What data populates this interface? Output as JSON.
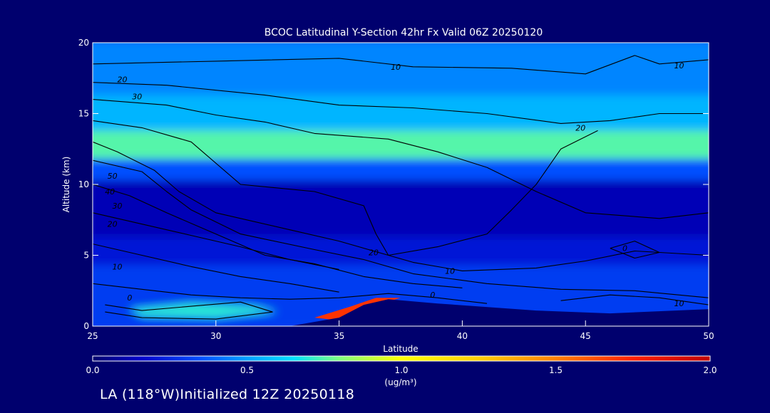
{
  "colors": {
    "background": "#00006e",
    "contour_line": "#000000",
    "axis": "#ffffff",
    "terrain": "#00006e"
  },
  "footer": {
    "text": "LA (118°W)Initialized 12Z 20250118"
  },
  "chart_data": {
    "type": "heatmap",
    "title": "BCOC Latitudinal Y-Section 42hr  Fx Valid 06Z 20250120",
    "xlabel": "Latitude",
    "ylabel": "Altitude (km)",
    "xlim": [
      25,
      50
    ],
    "ylim": [
      0,
      20
    ],
    "x_ticks": [
      25,
      30,
      35,
      40,
      45,
      50
    ],
    "y_ticks": [
      0,
      5,
      10,
      15,
      20
    ],
    "grid": false,
    "colorbar": {
      "label": "(ug/m³)",
      "range": [
        0.0,
        2.0
      ],
      "ticks": [
        "0.0",
        "0.5",
        "1.0",
        "1.5",
        "2.0"
      ],
      "stops": [
        {
          "v": 0.0,
          "c": "#00006e"
        },
        {
          "v": 0.15,
          "c": "#0000c8"
        },
        {
          "v": 0.35,
          "c": "#0050ff"
        },
        {
          "v": 0.5,
          "c": "#00a0ff"
        },
        {
          "v": 0.65,
          "c": "#00e0ff"
        },
        {
          "v": 0.8,
          "c": "#80ff80"
        },
        {
          "v": 1.0,
          "c": "#ffff00"
        },
        {
          "v": 1.25,
          "c": "#ffd000"
        },
        {
          "v": 1.5,
          "c": "#ff8000"
        },
        {
          "v": 1.75,
          "c": "#ff2000"
        },
        {
          "v": 2.0,
          "c": "#c00000"
        }
      ]
    },
    "field_bands": [
      {
        "y0": 0,
        "y1": 4.5,
        "value": 0.3
      },
      {
        "y0": 4.5,
        "y1": 6.5,
        "value": 0.2
      },
      {
        "y0": 6.5,
        "y1": 10.5,
        "value": 0.12
      },
      {
        "y0": 10.5,
        "y1": 12.0,
        "value": 0.35
      },
      {
        "y0": 12.0,
        "y1": 14.0,
        "value": 0.75
      },
      {
        "y0": 14.0,
        "y1": 16.5,
        "value": 0.55
      },
      {
        "y0": 16.5,
        "y1": 20,
        "value": 0.45
      }
    ],
    "contour_labels": [
      {
        "text": "10",
        "x": 37.3,
        "y": 18.3
      },
      {
        "text": "10",
        "x": 48.8,
        "y": 18.4
      },
      {
        "text": "20",
        "x": 26.2,
        "y": 17.4
      },
      {
        "text": "30",
        "x": 26.8,
        "y": 16.2
      },
      {
        "text": "20",
        "x": 44.8,
        "y": 14.0
      },
      {
        "text": "50",
        "x": 25.8,
        "y": 10.6
      },
      {
        "text": "40",
        "x": 25.7,
        "y": 9.5
      },
      {
        "text": "30",
        "x": 26.0,
        "y": 8.5
      },
      {
        "text": "20",
        "x": 25.8,
        "y": 7.2
      },
      {
        "text": "20",
        "x": 36.4,
        "y": 5.2
      },
      {
        "text": "10",
        "x": 26.0,
        "y": 4.2
      },
      {
        "text": "10",
        "x": 39.5,
        "y": 3.9
      },
      {
        "text": "0",
        "x": 26.5,
        "y": 2.0
      },
      {
        "text": "0",
        "x": 38.8,
        "y": 2.2
      },
      {
        "text": "0",
        "x": 46.6,
        "y": 5.5
      },
      {
        "text": "10",
        "x": 48.8,
        "y": 1.6
      }
    ]
  }
}
